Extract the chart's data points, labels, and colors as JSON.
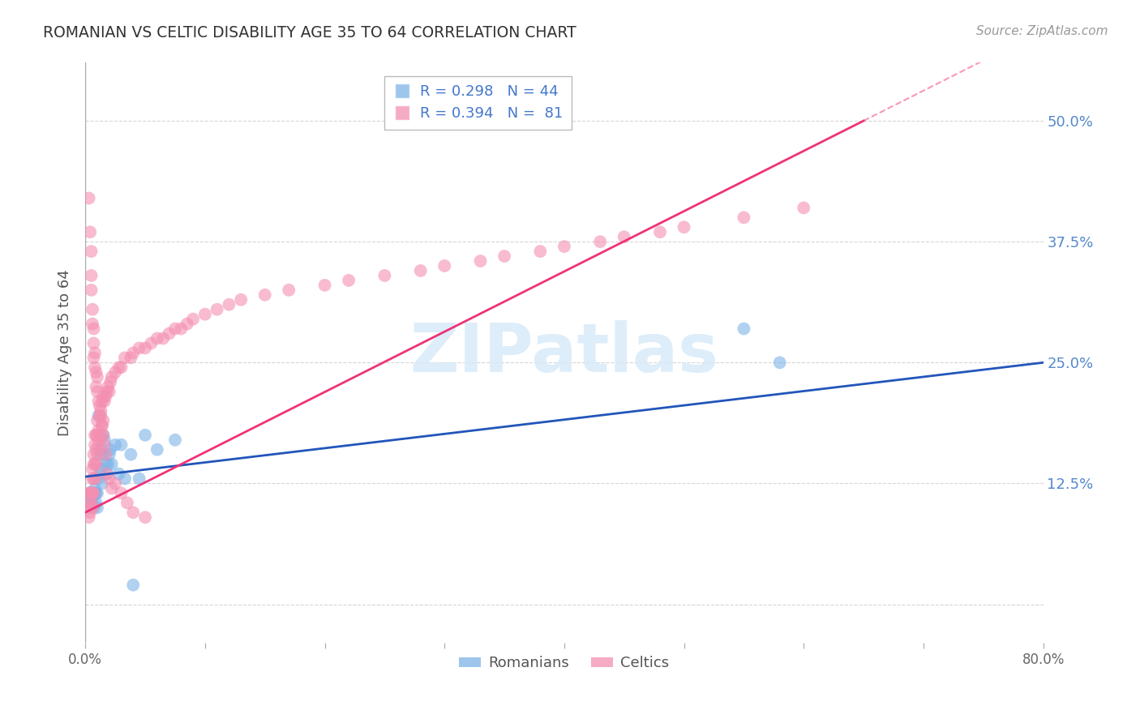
{
  "title": "ROMANIAN VS CELTIC DISABILITY AGE 35 TO 64 CORRELATION CHART",
  "source": "Source: ZipAtlas.com",
  "ylabel": "Disability Age 35 to 64",
  "xlim": [
    0.0,
    0.8
  ],
  "ylim": [
    -0.04,
    0.56
  ],
  "romanian_color": "#7EB3E8",
  "celtic_color": "#F48FB1",
  "trendline_romanian_color": "#2255BB",
  "trendline_celtic_color": "#EE3377",
  "watermark_text": "ZIPatlas",
  "background_color": "#FFFFFF",
  "grid_color": "#CCCCCC",
  "romanian_x": [
    0.003,
    0.004,
    0.004,
    0.005,
    0.005,
    0.005,
    0.006,
    0.006,
    0.007,
    0.007,
    0.008,
    0.008,
    0.009,
    0.009,
    0.01,
    0.01,
    0.011,
    0.011,
    0.012,
    0.012,
    0.013,
    0.013,
    0.014,
    0.015,
    0.015,
    0.016,
    0.017,
    0.018,
    0.019,
    0.02,
    0.021,
    0.022,
    0.025,
    0.028,
    0.03,
    0.033,
    0.038,
    0.04,
    0.045,
    0.05,
    0.06,
    0.075,
    0.55,
    0.58
  ],
  "romanian_y": [
    0.115,
    0.105,
    0.115,
    0.105,
    0.11,
    0.115,
    0.11,
    0.115,
    0.1,
    0.115,
    0.115,
    0.12,
    0.105,
    0.115,
    0.1,
    0.115,
    0.13,
    0.195,
    0.135,
    0.155,
    0.14,
    0.16,
    0.125,
    0.155,
    0.175,
    0.17,
    0.145,
    0.135,
    0.145,
    0.155,
    0.16,
    0.145,
    0.165,
    0.135,
    0.165,
    0.13,
    0.155,
    0.02,
    0.13,
    0.175,
    0.16,
    0.17,
    0.285,
    0.25
  ],
  "celtic_x": [
    0.003,
    0.003,
    0.004,
    0.004,
    0.004,
    0.005,
    0.005,
    0.005,
    0.005,
    0.006,
    0.006,
    0.006,
    0.006,
    0.007,
    0.007,
    0.007,
    0.007,
    0.008,
    0.008,
    0.008,
    0.008,
    0.009,
    0.009,
    0.009,
    0.01,
    0.01,
    0.01,
    0.011,
    0.011,
    0.012,
    0.012,
    0.013,
    0.013,
    0.014,
    0.014,
    0.015,
    0.015,
    0.016,
    0.017,
    0.018,
    0.019,
    0.02,
    0.021,
    0.022,
    0.025,
    0.028,
    0.03,
    0.033,
    0.038,
    0.04,
    0.045,
    0.05,
    0.055,
    0.06,
    0.065,
    0.07,
    0.075,
    0.08,
    0.085,
    0.09,
    0.1,
    0.11,
    0.12,
    0.13,
    0.15,
    0.17,
    0.2,
    0.22,
    0.25,
    0.28,
    0.3,
    0.33,
    0.35,
    0.38,
    0.4,
    0.43,
    0.45,
    0.48,
    0.5,
    0.55,
    0.6
  ],
  "celtic_y": [
    0.115,
    0.09,
    0.095,
    0.105,
    0.115,
    0.1,
    0.115,
    0.105,
    0.115,
    0.1,
    0.115,
    0.13,
    0.14,
    0.115,
    0.13,
    0.145,
    0.155,
    0.13,
    0.145,
    0.165,
    0.175,
    0.145,
    0.16,
    0.175,
    0.155,
    0.175,
    0.19,
    0.165,
    0.18,
    0.17,
    0.195,
    0.175,
    0.2,
    0.185,
    0.21,
    0.19,
    0.215,
    0.21,
    0.215,
    0.22,
    0.225,
    0.22,
    0.23,
    0.235,
    0.24,
    0.245,
    0.245,
    0.255,
    0.255,
    0.26,
    0.265,
    0.265,
    0.27,
    0.275,
    0.275,
    0.28,
    0.285,
    0.285,
    0.29,
    0.295,
    0.3,
    0.305,
    0.31,
    0.315,
    0.32,
    0.325,
    0.33,
    0.335,
    0.34,
    0.345,
    0.35,
    0.355,
    0.36,
    0.365,
    0.37,
    0.375,
    0.38,
    0.385,
    0.39,
    0.4,
    0.41
  ],
  "celtic_high_x": [
    0.003,
    0.004,
    0.005,
    0.005,
    0.005,
    0.006,
    0.006,
    0.007,
    0.007,
    0.007,
    0.008,
    0.008,
    0.009,
    0.009,
    0.01,
    0.01,
    0.011,
    0.012,
    0.013,
    0.014,
    0.015,
    0.016,
    0.017,
    0.018,
    0.02,
    0.022,
    0.025,
    0.03,
    0.035,
    0.04,
    0.05
  ],
  "celtic_high_y": [
    0.42,
    0.385,
    0.365,
    0.34,
    0.325,
    0.305,
    0.29,
    0.285,
    0.27,
    0.255,
    0.245,
    0.26,
    0.24,
    0.225,
    0.22,
    0.235,
    0.21,
    0.205,
    0.195,
    0.185,
    0.175,
    0.165,
    0.155,
    0.135,
    0.13,
    0.12,
    0.125,
    0.115,
    0.105,
    0.095,
    0.09
  ]
}
